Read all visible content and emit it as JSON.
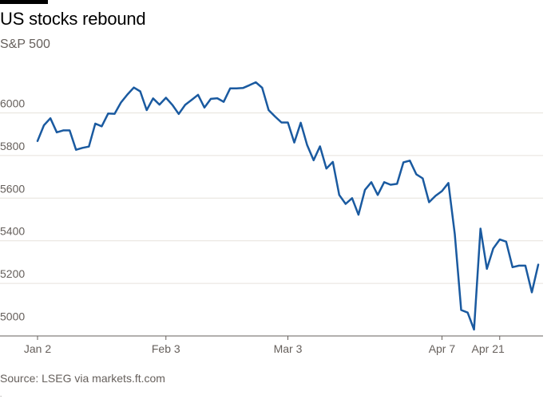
{
  "header": {
    "title": "US stocks rebound",
    "subtitle": "S&P 500"
  },
  "footer": {
    "source": "Source: LSEG via markets.ft.com",
    "mark": "."
  },
  "colors": {
    "line": "#1a5aa0",
    "grid": "#e6e2dc",
    "axis": "#66605c",
    "text": "#66605c"
  },
  "chart_data": {
    "type": "line",
    "title": "US stocks rebound",
    "subtitle": "S&P 500",
    "xlabel": "",
    "ylabel": "",
    "ylim": [
      4980,
      6160
    ],
    "yticks": [
      5000,
      5200,
      5400,
      5600,
      5800,
      6000
    ],
    "xticks": [
      {
        "label": "Jan 2",
        "index": 0
      },
      {
        "label": "Feb 3",
        "index": 20
      },
      {
        "label": "Mar 3",
        "index": 39
      },
      {
        "label": "Apr 7",
        "index": 63
      },
      {
        "label": "Apr 21",
        "index": 72
      }
    ],
    "grid": true,
    "legend": "none",
    "series": [
      {
        "values": [
          5868,
          5942,
          5975,
          5909,
          5918,
          5918,
          5827,
          5836,
          5842,
          5950,
          5937,
          5997,
          5996,
          6049,
          6086,
          6119,
          6101,
          6013,
          6068,
          6039,
          6071,
          6038,
          5995,
          6038,
          6061,
          6085,
          6025,
          6066,
          6069,
          6052,
          6115,
          6115,
          6117,
          6130,
          6144,
          6118,
          6013,
          5983,
          5955,
          5955,
          5861,
          5954,
          5849,
          5778,
          5843,
          5739,
          5770,
          5615,
          5573,
          5600,
          5522,
          5639,
          5675,
          5615,
          5675,
          5663,
          5667,
          5768,
          5776,
          5712,
          5693,
          5581,
          5611,
          5633,
          5671,
          5431,
          5075,
          5063,
          4983,
          5457,
          5268,
          5364,
          5406,
          5396,
          5276,
          5283,
          5283,
          5158,
          5288
        ]
      }
    ]
  }
}
